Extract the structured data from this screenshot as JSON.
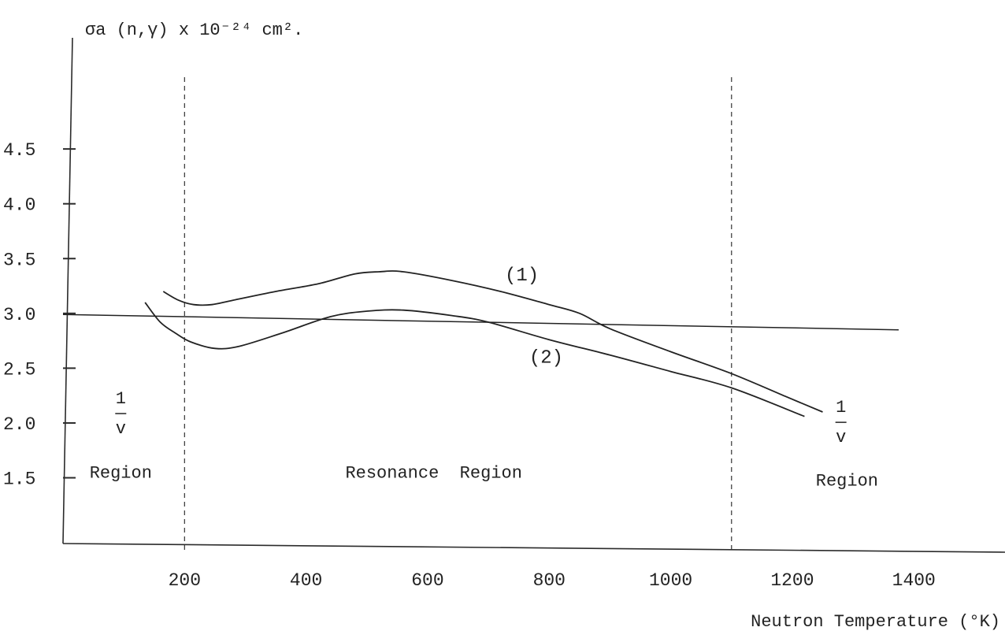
{
  "chart_data": {
    "type": "line",
    "title": "σa (n,γ) x 10⁻²⁴ cm².",
    "xlabel": "Neutron Temperature (°K)",
    "ylabel": "",
    "xlim": [
      0,
      1550
    ],
    "ylim": [
      0.9,
      5.5
    ],
    "x_ticks": [
      {
        "value": 200,
        "label": "200"
      },
      {
        "value": 400,
        "label": "400"
      },
      {
        "value": 600,
        "label": "600"
      },
      {
        "value": 800,
        "label": "800"
      },
      {
        "value": 1000,
        "label": "1000"
      },
      {
        "value": 1200,
        "label": "1200"
      },
      {
        "value": 1400,
        "label": "1400"
      }
    ],
    "y_ticks": [
      {
        "value": 1.5,
        "label": "1.5"
      },
      {
        "value": 2.0,
        "label": "2.0"
      },
      {
        "value": 2.5,
        "label": "2.5"
      },
      {
        "value": 3.0,
        "label": "3.0"
      },
      {
        "value": 3.5,
        "label": "3.5"
      },
      {
        "value": 4.0,
        "label": "4.0"
      },
      {
        "value": 4.5,
        "label": "4.5"
      }
    ],
    "series": [
      {
        "name": "(1)",
        "x": [
          165,
          190,
          215,
          245,
          280,
          350,
          420,
          480,
          520,
          560,
          640,
          720,
          800,
          850,
          900,
          1000,
          1100,
          1190,
          1250
        ],
        "y": [
          3.2,
          3.12,
          3.08,
          3.08,
          3.12,
          3.2,
          3.27,
          3.36,
          3.38,
          3.38,
          3.3,
          3.2,
          3.08,
          3.0,
          2.86,
          2.65,
          2.45,
          2.24,
          2.1
        ]
      },
      {
        "name": "(2)",
        "x": [
          135,
          160,
          185,
          210,
          250,
          290,
          360,
          440,
          500,
          560,
          640,
          700,
          800,
          900,
          1000,
          1100,
          1220
        ],
        "y": [
          3.1,
          2.92,
          2.82,
          2.74,
          2.68,
          2.7,
          2.82,
          2.97,
          3.02,
          3.03,
          2.98,
          2.92,
          2.76,
          2.62,
          2.47,
          2.32,
          2.06
        ]
      },
      {
        "name": "",
        "style": "reference",
        "x": [
          0,
          1375
        ],
        "y": [
          2.99,
          2.85
        ]
      }
    ],
    "series_labels": [
      {
        "series": 0,
        "text": "(1)",
        "x": 755,
        "y": 3.3
      },
      {
        "series": 1,
        "text": "(2)",
        "x": 795,
        "y": 2.55
      }
    ],
    "dividers": [
      {
        "x": 200,
        "style": "dashed"
      },
      {
        "x": 1100,
        "style": "dashed"
      }
    ],
    "annotations": [
      {
        "id": "left-1v",
        "num": "1",
        "den": "v",
        "x": 95,
        "y": 2.05
      },
      {
        "id": "left-region",
        "text": "Region",
        "x": 95,
        "y": 1.5
      },
      {
        "id": "middle-region",
        "text": "Resonance  Region",
        "x": 610,
        "y": 1.5
      },
      {
        "id": "right-1v",
        "num": "1",
        "den": "v",
        "x": 1280,
        "y": 1.97
      },
      {
        "id": "right-region",
        "text": "Region",
        "x": 1290,
        "y": 1.43
      }
    ],
    "grid": false,
    "legend": "none"
  }
}
